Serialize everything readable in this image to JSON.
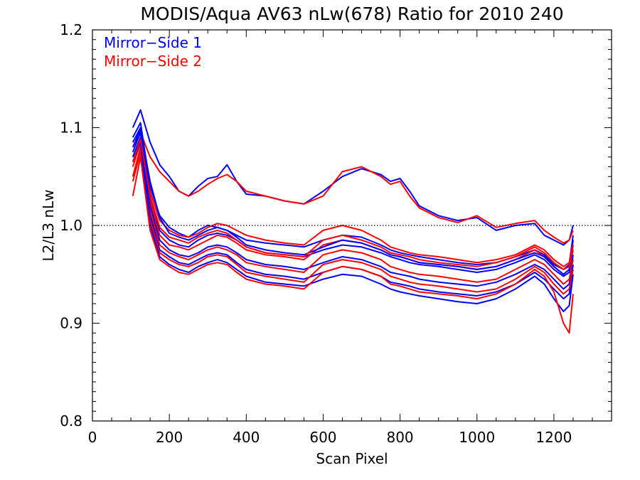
{
  "chart_data": {
    "type": "line",
    "title": "MODIS/Aqua AV63 nLw(678) Ratio for 2010 240",
    "xlabel": "Scan Pixel",
    "ylabel": "L2/L3 nLw",
    "xlim": [
      0,
      1350
    ],
    "ylim": [
      0.8,
      1.2
    ],
    "xticks": [
      0,
      200,
      400,
      600,
      800,
      1000,
      1200
    ],
    "xtick_labels": [
      "0",
      "200",
      "400",
      "600",
      "800",
      "1000",
      "1200"
    ],
    "yticks": [
      0.8,
      0.9,
      1.0,
      1.1,
      1.2
    ],
    "ytick_labels": [
      "0.8",
      "0.9",
      "1.0",
      "1.1",
      "1.2"
    ],
    "reference_line": {
      "y": 1.0,
      "style": "dotted"
    },
    "grid": false,
    "legend": {
      "position": "top-left",
      "entries": [
        {
          "label": "Mirror−Side 1",
          "color": "#0000ff"
        },
        {
          "label": "Mirror−Side 2",
          "color": "#ff0000"
        }
      ]
    },
    "x": [
      105,
      125,
      150,
      175,
      200,
      225,
      250,
      275,
      300,
      325,
      350,
      375,
      400,
      450,
      500,
      550,
      600,
      650,
      700,
      750,
      775,
      800,
      825,
      850,
      900,
      950,
      1000,
      1050,
      1100,
      1150,
      1175,
      1200,
      1225,
      1240,
      1250
    ],
    "series": [
      {
        "color": "#0000ff",
        "values": [
          1.1,
          1.118,
          1.085,
          1.062,
          1.05,
          1.035,
          1.03,
          1.04,
          1.048,
          1.05,
          1.062,
          1.045,
          1.032,
          1.03,
          1.025,
          1.022,
          1.035,
          1.05,
          1.058,
          1.052,
          1.045,
          1.048,
          1.035,
          1.02,
          1.01,
          1.005,
          1.008,
          0.995,
          1.0,
          1.002,
          0.99,
          0.985,
          0.98,
          0.985,
          1.0
        ]
      },
      {
        "color": "#ff0000",
        "values": [
          1.08,
          1.095,
          1.07,
          1.055,
          1.045,
          1.035,
          1.03,
          1.035,
          1.042,
          1.048,
          1.052,
          1.045,
          1.035,
          1.03,
          1.025,
          1.022,
          1.03,
          1.055,
          1.06,
          1.05,
          1.042,
          1.045,
          1.03,
          1.018,
          1.008,
          1.003,
          1.01,
          0.998,
          1.002,
          1.005,
          0.995,
          0.988,
          0.982,
          0.985,
          0.995
        ]
      },
      {
        "color": "#0000ff",
        "values": [
          1.09,
          1.105,
          1.04,
          1.01,
          0.998,
          0.992,
          0.988,
          0.995,
          1.0,
          0.998,
          0.995,
          0.99,
          0.985,
          0.982,
          0.98,
          0.978,
          0.985,
          0.99,
          0.988,
          0.98,
          0.975,
          0.972,
          0.97,
          0.968,
          0.965,
          0.962,
          0.96,
          0.962,
          0.968,
          0.975,
          0.97,
          0.96,
          0.955,
          0.96,
          0.99
        ]
      },
      {
        "color": "#ff0000",
        "values": [
          1.07,
          1.09,
          1.035,
          1.005,
          0.995,
          0.99,
          0.988,
          0.992,
          0.998,
          1.002,
          1.0,
          0.995,
          0.99,
          0.985,
          0.982,
          0.98,
          0.995,
          1.0,
          0.995,
          0.985,
          0.978,
          0.975,
          0.972,
          0.97,
          0.968,
          0.965,
          0.962,
          0.965,
          0.97,
          0.98,
          0.975,
          0.965,
          0.958,
          0.962,
          0.985
        ]
      },
      {
        "color": "#0000ff",
        "values": [
          1.085,
          1.1,
          1.03,
          0.995,
          0.985,
          0.98,
          0.978,
          0.985,
          0.99,
          0.992,
          0.99,
          0.985,
          0.978,
          0.972,
          0.97,
          0.968,
          0.975,
          0.98,
          0.978,
          0.972,
          0.968,
          0.965,
          0.962,
          0.96,
          0.958,
          0.955,
          0.952,
          0.955,
          0.962,
          0.97,
          0.965,
          0.955,
          0.948,
          0.952,
          0.98
        ]
      },
      {
        "color": "#ff0000",
        "values": [
          1.06,
          1.085,
          1.025,
          0.99,
          0.98,
          0.978,
          0.975,
          0.98,
          0.985,
          0.99,
          0.988,
          0.982,
          0.975,
          0.97,
          0.968,
          0.965,
          0.98,
          0.985,
          0.982,
          0.975,
          0.97,
          0.968,
          0.965,
          0.962,
          0.96,
          0.958,
          0.955,
          0.958,
          0.965,
          0.975,
          0.968,
          0.958,
          0.95,
          0.955,
          0.975
        ]
      },
      {
        "color": "#0000ff",
        "values": [
          1.075,
          1.095,
          1.02,
          0.985,
          0.975,
          0.97,
          0.968,
          0.972,
          0.978,
          0.98,
          0.978,
          0.972,
          0.965,
          0.96,
          0.958,
          0.955,
          0.962,
          0.968,
          0.965,
          0.958,
          0.952,
          0.95,
          0.948,
          0.945,
          0.942,
          0.94,
          0.938,
          0.942,
          0.95,
          0.96,
          0.955,
          0.945,
          0.935,
          0.94,
          0.97
        ]
      },
      {
        "color": "#ff0000",
        "values": [
          1.05,
          1.08,
          1.015,
          0.98,
          0.972,
          0.968,
          0.965,
          0.97,
          0.975,
          0.978,
          0.975,
          0.97,
          0.962,
          0.958,
          0.955,
          0.952,
          0.97,
          0.975,
          0.972,
          0.965,
          0.958,
          0.955,
          0.952,
          0.95,
          0.948,
          0.945,
          0.942,
          0.945,
          0.955,
          0.965,
          0.96,
          0.95,
          0.94,
          0.945,
          0.965
        ]
      },
      {
        "color": "#0000ff",
        "values": [
          1.07,
          1.09,
          1.01,
          0.975,
          0.968,
          0.962,
          0.96,
          0.965,
          0.97,
          0.972,
          0.97,
          0.962,
          0.955,
          0.95,
          0.948,
          0.945,
          0.952,
          0.958,
          0.955,
          0.948,
          0.942,
          0.94,
          0.938,
          0.935,
          0.932,
          0.93,
          0.928,
          0.932,
          0.94,
          0.952,
          0.945,
          0.935,
          0.925,
          0.93,
          0.96
        ]
      },
      {
        "color": "#ff0000",
        "values": [
          1.045,
          1.075,
          1.005,
          0.972,
          0.965,
          0.96,
          0.958,
          0.962,
          0.968,
          0.97,
          0.968,
          0.96,
          0.952,
          0.948,
          0.945,
          0.942,
          0.96,
          0.965,
          0.962,
          0.955,
          0.948,
          0.945,
          0.942,
          0.94,
          0.938,
          0.935,
          0.932,
          0.935,
          0.945,
          0.958,
          0.952,
          0.94,
          0.93,
          0.935,
          0.955
        ]
      },
      {
        "color": "#0000ff",
        "values": [
          1.065,
          1.085,
          1.0,
          0.968,
          0.96,
          0.955,
          0.952,
          0.958,
          0.962,
          0.965,
          0.962,
          0.955,
          0.948,
          0.942,
          0.94,
          0.938,
          0.945,
          0.95,
          0.948,
          0.94,
          0.935,
          0.932,
          0.93,
          0.928,
          0.925,
          0.922,
          0.92,
          0.925,
          0.935,
          0.948,
          0.94,
          0.925,
          0.912,
          0.918,
          0.95
        ]
      },
      {
        "color": "#ff0000",
        "values": [
          1.03,
          1.07,
          0.995,
          0.965,
          0.958,
          0.952,
          0.95,
          0.955,
          0.96,
          0.962,
          0.96,
          0.952,
          0.945,
          0.94,
          0.938,
          0.935,
          0.952,
          0.958,
          0.955,
          0.948,
          0.94,
          0.938,
          0.935,
          0.932,
          0.93,
          0.928,
          0.925,
          0.93,
          0.94,
          0.955,
          0.948,
          0.932,
          0.9,
          0.89,
          0.93
        ]
      },
      {
        "color": "#0000ff",
        "values": [
          1.08,
          1.098,
          1.045,
          1.008,
          0.992,
          0.988,
          0.985,
          0.99,
          0.995,
          0.998,
          0.995,
          0.988,
          0.98,
          0.975,
          0.972,
          0.97,
          0.978,
          0.985,
          0.982,
          0.975,
          0.97,
          0.968,
          0.965,
          0.962,
          0.96,
          0.958,
          0.955,
          0.958,
          0.965,
          0.972,
          0.968,
          0.958,
          0.95,
          0.955,
          0.985
        ]
      },
      {
        "color": "#ff0000",
        "values": [
          1.065,
          1.088,
          1.03,
          0.998,
          0.988,
          0.985,
          0.982,
          0.988,
          0.992,
          0.995,
          0.992,
          0.985,
          0.978,
          0.972,
          0.97,
          0.968,
          0.985,
          0.99,
          0.985,
          0.978,
          0.972,
          0.97,
          0.968,
          0.965,
          0.962,
          0.96,
          0.958,
          0.962,
          0.968,
          0.978,
          0.972,
          0.962,
          0.955,
          0.958,
          0.98
        ]
      }
    ]
  }
}
